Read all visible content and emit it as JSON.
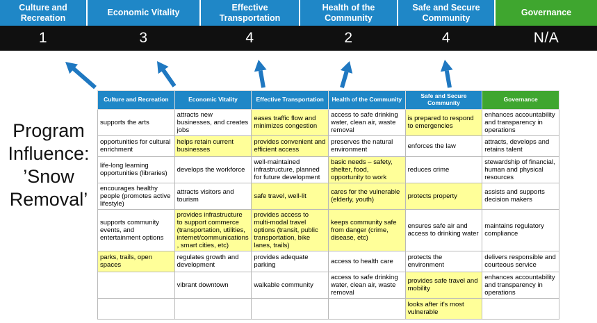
{
  "colors": {
    "header_blue": "#1f87c7",
    "header_green": "#3fa62f",
    "score_band_bg": "#101010",
    "highlight": "#ffff99",
    "arrow": "#1f78c1"
  },
  "top": {
    "columns": [
      {
        "label": "Culture and Recreation",
        "score": "1",
        "color": "#1f87c7"
      },
      {
        "label": "Economic Vitality",
        "score": "3",
        "color": "#1f87c7"
      },
      {
        "label": "Effective Transportation",
        "score": "4",
        "color": "#1f87c7"
      },
      {
        "label": "Health of the Community",
        "score": "2",
        "color": "#1f87c7"
      },
      {
        "label": "Safe and Secure Community",
        "score": "4",
        "color": "#1f87c7"
      },
      {
        "label": "Governance",
        "score": "N/A",
        "color": "#3fa62f"
      }
    ]
  },
  "program_label": "Program Influence: ’Snow Removal’",
  "matrix": {
    "columns": [
      {
        "label": "Culture and Recreation",
        "color": "#1f87c7"
      },
      {
        "label": "Economic Vitality",
        "color": "#1f87c7"
      },
      {
        "label": "Effective Transportation",
        "color": "#1f87c7"
      },
      {
        "label": "Health of the Community",
        "color": "#1f87c7"
      },
      {
        "label": "Safe and Secure Community",
        "color": "#1f87c7"
      },
      {
        "label": "Governance",
        "color": "#3fa62f"
      }
    ],
    "rows": [
      [
        {
          "text": "supports the arts",
          "hl": false
        },
        {
          "text": "attracts new businesses, and creates jobs",
          "hl": false
        },
        {
          "text": "eases traffic flow and minimizes congestion",
          "hl": true
        },
        {
          "text": "access to safe drinking water, clean air, waste removal",
          "hl": false
        },
        {
          "text": "is prepared to respond to emergencies",
          "hl": true
        },
        {
          "text": "enhances accountability and transparency in operations",
          "hl": false
        }
      ],
      [
        {
          "text": "opportunities for cultural enrichment",
          "hl": false
        },
        {
          "text": "helps retain current businesses",
          "hl": true
        },
        {
          "text": "provides convenient and efficient access",
          "hl": true
        },
        {
          "text": "preserves the natural environment",
          "hl": false
        },
        {
          "text": "enforces the law",
          "hl": false
        },
        {
          "text": "attracts, develops and retains talent",
          "hl": false
        }
      ],
      [
        {
          "text": "life-long learning opportunities (libraries)",
          "hl": false
        },
        {
          "text": "develops the workforce",
          "hl": false
        },
        {
          "text": "well-maintained infrastructure, planned for future development",
          "hl": false
        },
        {
          "text": "basic needs – safety, shelter, food, opportunity to work",
          "hl": true
        },
        {
          "text": "reduces crime",
          "hl": false
        },
        {
          "text": "stewardship of financial, human and physical resources",
          "hl": false
        }
      ],
      [
        {
          "text": "encourages healthy people (promotes active lifestyle)",
          "hl": false
        },
        {
          "text": "attracts visitors and tourism",
          "hl": false
        },
        {
          "text": "safe travel, well-lit",
          "hl": true
        },
        {
          "text": "cares for the vulnerable (elderly, youth)",
          "hl": true
        },
        {
          "text": "protects property",
          "hl": true
        },
        {
          "text": "assists and supports decision makers",
          "hl": false
        }
      ],
      [
        {
          "text": "supports community events, and entertainment options",
          "hl": false
        },
        {
          "text": "provides infrastructure to support commerce (transportation, utilities, internet/communications, smart cities, etc)",
          "hl": true
        },
        {
          "text": "provides access to multi-modal travel options (transit, public transportation, bike lanes, trails)",
          "hl": true
        },
        {
          "text": "keeps community safe from danger (crime, disease, etc)",
          "hl": true
        },
        {
          "text": "ensures safe air and access to drinking water",
          "hl": false
        },
        {
          "text": "maintains regulatory compliance",
          "hl": false
        }
      ],
      [
        {
          "text": "parks, trails, open spaces",
          "hl": true
        },
        {
          "text": "regulates growth and development",
          "hl": false
        },
        {
          "text": "provides adequate parking",
          "hl": false
        },
        {
          "text": "access to health care",
          "hl": false
        },
        {
          "text": "protects the environment",
          "hl": false
        },
        {
          "text": "delivers responsible and courteous service",
          "hl": false
        }
      ],
      [
        {
          "text": "",
          "hl": false
        },
        {
          "text": "vibrant downtown",
          "hl": false
        },
        {
          "text": "walkable community",
          "hl": false
        },
        {
          "text": "access to safe drinking water, clean air, waste removal",
          "hl": false
        },
        {
          "text": "provides safe travel and mobility",
          "hl": true
        },
        {
          "text": "enhances accountability and transparency in operations",
          "hl": false
        }
      ],
      [
        {
          "text": "",
          "hl": false
        },
        {
          "text": "",
          "hl": false
        },
        {
          "text": "",
          "hl": false
        },
        {
          "text": "",
          "hl": false
        },
        {
          "text": "looks after it's most vulnerable",
          "hl": true
        },
        {
          "text": "",
          "hl": false
        }
      ]
    ]
  }
}
